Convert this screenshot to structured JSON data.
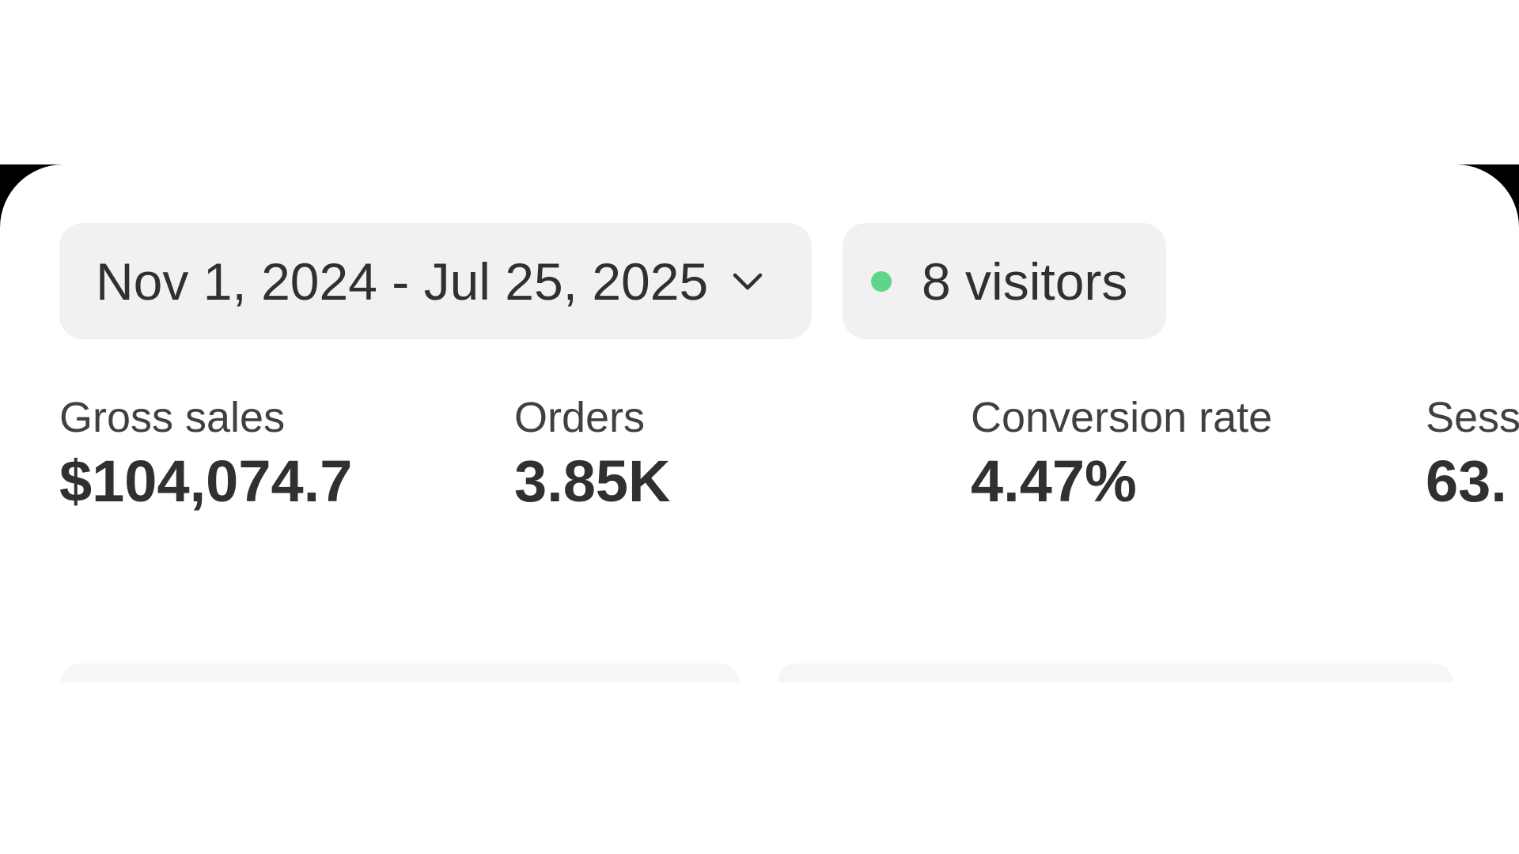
{
  "date_range": {
    "label": "Nov 1, 2024 - Jul 25, 2025"
  },
  "visitors": {
    "label": "8 visitors"
  },
  "metrics": [
    {
      "label": "Gross sales",
      "value": "$104,074.7"
    },
    {
      "label": "Orders",
      "value": "3.85K"
    },
    {
      "label": "Conversion rate",
      "value": "4.47%"
    },
    {
      "label": "Sess",
      "value": "63."
    }
  ]
}
